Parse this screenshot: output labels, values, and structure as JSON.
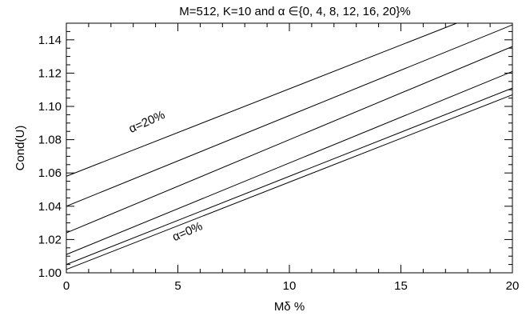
{
  "chart_data": {
    "type": "line",
    "title": "M=512, K=10 and α ∈{0, 4, 8, 12, 16, 20}%",
    "xlabel": "Mδ %",
    "ylabel": "Cond(U)",
    "xlim": [
      0,
      20
    ],
    "ylim": [
      1.0,
      1.15
    ],
    "x_ticks": [
      0,
      5,
      10,
      15,
      20
    ],
    "y_ticks": [
      1.0,
      1.02,
      1.04,
      1.06,
      1.08,
      1.1,
      1.12,
      1.14
    ],
    "x_tick_labels": [
      "0",
      "5",
      "10",
      "15",
      "20"
    ],
    "y_tick_labels": [
      "1.00",
      "1.02",
      "1.04",
      "1.06",
      "1.08",
      "1.10",
      "1.12",
      "1.14"
    ],
    "grid": false,
    "legend": "none",
    "series": [
      {
        "x": [
          0,
          20
        ],
        "values": [
          1.002,
          1.107
        ]
      },
      {
        "x": [
          0,
          20
        ],
        "values": [
          1.005,
          1.111
        ]
      },
      {
        "x": [
          0,
          20
        ],
        "values": [
          1.011,
          1.121
        ]
      },
      {
        "x": [
          0,
          20
        ],
        "values": [
          1.024,
          1.136
        ]
      },
      {
        "x": [
          0,
          20
        ],
        "values": [
          1.04,
          1.149
        ]
      },
      {
        "x": [
          0,
          17.5
        ],
        "values": [
          1.058,
          1.15
        ]
      }
    ],
    "annotations": [
      {
        "text": "α=20%",
        "x": 2.9,
        "y": 1.084,
        "angle": -24
      },
      {
        "text": "α=0%",
        "x": 4.85,
        "y": 1.019,
        "angle": -23
      }
    ]
  }
}
